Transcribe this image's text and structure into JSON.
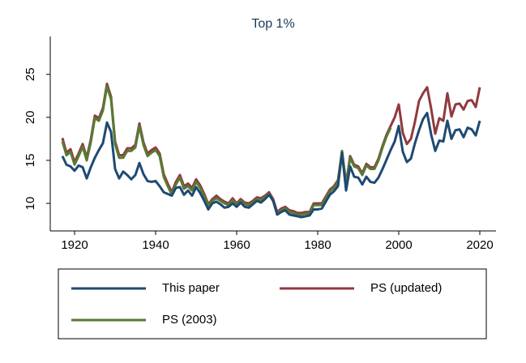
{
  "chart_data": {
    "type": "line",
    "title": "Top 1%",
    "x": [
      1917,
      1918,
      1919,
      1920,
      1921,
      1922,
      1923,
      1924,
      1925,
      1926,
      1927,
      1928,
      1929,
      1930,
      1931,
      1932,
      1933,
      1934,
      1935,
      1936,
      1937,
      1938,
      1939,
      1940,
      1941,
      1942,
      1943,
      1944,
      1945,
      1946,
      1947,
      1948,
      1949,
      1950,
      1951,
      1952,
      1953,
      1954,
      1955,
      1956,
      1957,
      1958,
      1959,
      1960,
      1961,
      1962,
      1963,
      1964,
      1965,
      1966,
      1967,
      1968,
      1969,
      1970,
      1971,
      1972,
      1973,
      1974,
      1975,
      1976,
      1977,
      1978,
      1979,
      1980,
      1981,
      1982,
      1983,
      1984,
      1985,
      1986,
      1987,
      1988,
      1989,
      1990,
      1991,
      1992,
      1993,
      1994,
      1995,
      1996,
      1997,
      1998,
      1999,
      2000,
      2001,
      2002,
      2003,
      2004,
      2005,
      2006,
      2007,
      2008,
      2009,
      2010,
      2011,
      2012,
      2013,
      2014,
      2015,
      2016,
      2017,
      2018,
      2019,
      2020
    ],
    "series": [
      {
        "name": "This paper",
        "color": "#1f4a73",
        "values": [
          15.5,
          14.5,
          14.3,
          13.8,
          14.4,
          14.2,
          12.9,
          14.2,
          15.3,
          16.2,
          17.0,
          19.4,
          18.3,
          14.0,
          12.9,
          13.7,
          13.3,
          12.8,
          13.3,
          14.7,
          13.4,
          12.6,
          12.5,
          12.6,
          12.0,
          11.3,
          11.1,
          10.9,
          11.8,
          11.9,
          11.0,
          11.5,
          10.9,
          11.9,
          11.2,
          10.3,
          9.3,
          10.0,
          10.2,
          9.9,
          9.5,
          9.6,
          10.0,
          9.6,
          10.1,
          9.6,
          9.5,
          9.9,
          10.3,
          10.1,
          10.5,
          11.0,
          10.3,
          8.7,
          9.0,
          9.2,
          8.7,
          8.6,
          8.5,
          8.4,
          8.5,
          8.6,
          9.3,
          9.3,
          9.4,
          10.2,
          11.0,
          11.4,
          12.0,
          15.9,
          11.5,
          14.3,
          13.1,
          13.0,
          12.2,
          13.1,
          12.5,
          12.4,
          13.0,
          14.0,
          15.1,
          16.2,
          17.2,
          19.0,
          16.0,
          14.8,
          15.2,
          17.0,
          18.5,
          19.8,
          20.5,
          18.0,
          16.1,
          17.3,
          17.2,
          19.6,
          17.5,
          18.5,
          18.6,
          17.7,
          18.8,
          18.6,
          17.9,
          19.6
        ]
      },
      {
        "name": "PS (updated)",
        "color": "#903a40",
        "values": [
          17.6,
          15.9,
          16.3,
          14.8,
          15.8,
          16.9,
          15.3,
          17.4,
          20.2,
          19.9,
          21.1,
          23.9,
          22.4,
          17.2,
          15.6,
          15.6,
          16.4,
          16.4,
          16.8,
          19.3,
          17.1,
          15.8,
          16.2,
          16.5,
          15.8,
          13.4,
          12.3,
          11.3,
          12.5,
          13.3,
          12.0,
          12.3,
          11.8,
          12.8,
          12.1,
          11.1,
          9.9,
          10.5,
          10.9,
          10.5,
          10.2,
          10.0,
          10.6,
          10.0,
          10.5,
          10.1,
          10.0,
          10.3,
          10.7,
          10.6,
          10.9,
          11.3,
          10.5,
          9.0,
          9.4,
          9.6,
          9.2,
          9.1,
          8.9,
          8.9,
          9.0,
          9.0,
          10.0,
          10.0,
          10.0,
          10.8,
          11.6,
          12.0,
          12.7,
          16.0,
          12.3,
          15.5,
          14.5,
          14.3,
          13.5,
          14.6,
          14.2,
          14.2,
          15.2,
          16.7,
          18.0,
          19.0,
          20.0,
          21.5,
          18.2,
          16.9,
          17.5,
          19.5,
          21.9,
          22.8,
          23.5,
          21.0,
          18.1,
          19.9,
          19.6,
          22.8,
          20.1,
          21.5,
          21.6,
          20.9,
          21.9,
          22.0,
          21.2,
          23.5
        ]
      },
      {
        "name": "PS (2003)",
        "color": "#587a34",
        "values": [
          17.2,
          15.6,
          16.0,
          14.5,
          15.5,
          16.6,
          15.0,
          17.1,
          19.9,
          19.6,
          20.8,
          23.6,
          22.1,
          16.9,
          15.3,
          15.3,
          16.1,
          16.1,
          16.5,
          19.0,
          16.8,
          15.5,
          15.9,
          16.2,
          15.5,
          13.1,
          12.0,
          11.0,
          12.2,
          13.0,
          11.7,
          12.0,
          11.5,
          12.5,
          11.8,
          10.8,
          9.7,
          10.3,
          10.6,
          10.3,
          10.0,
          9.8,
          10.4,
          9.8,
          10.3,
          9.9,
          9.8,
          10.1,
          10.5,
          10.4,
          10.7,
          11.1,
          10.3,
          8.8,
          9.2,
          9.4,
          9.0,
          8.9,
          8.7,
          8.7,
          8.8,
          8.8,
          9.8,
          9.8,
          9.8,
          10.6,
          11.4,
          11.8,
          12.5,
          16.1,
          12.1,
          15.3,
          14.3,
          14.1,
          13.3,
          14.4,
          14.0,
          14.0,
          15.0,
          16.5,
          17.8,
          18.8,
          null,
          null,
          null,
          null,
          null,
          null,
          null,
          null,
          null,
          null,
          null,
          null,
          null,
          null,
          null,
          null,
          null,
          null,
          null,
          null,
          null,
          null
        ]
      }
    ],
    "xlim": [
      1914,
      2024
    ],
    "xticks": [
      1920,
      1940,
      1960,
      1980,
      2000,
      2020
    ],
    "ylim": [
      6.8,
      29.4
    ],
    "yticks": [
      10,
      15,
      20,
      25
    ],
    "grid": false,
    "legend": "bottom"
  }
}
